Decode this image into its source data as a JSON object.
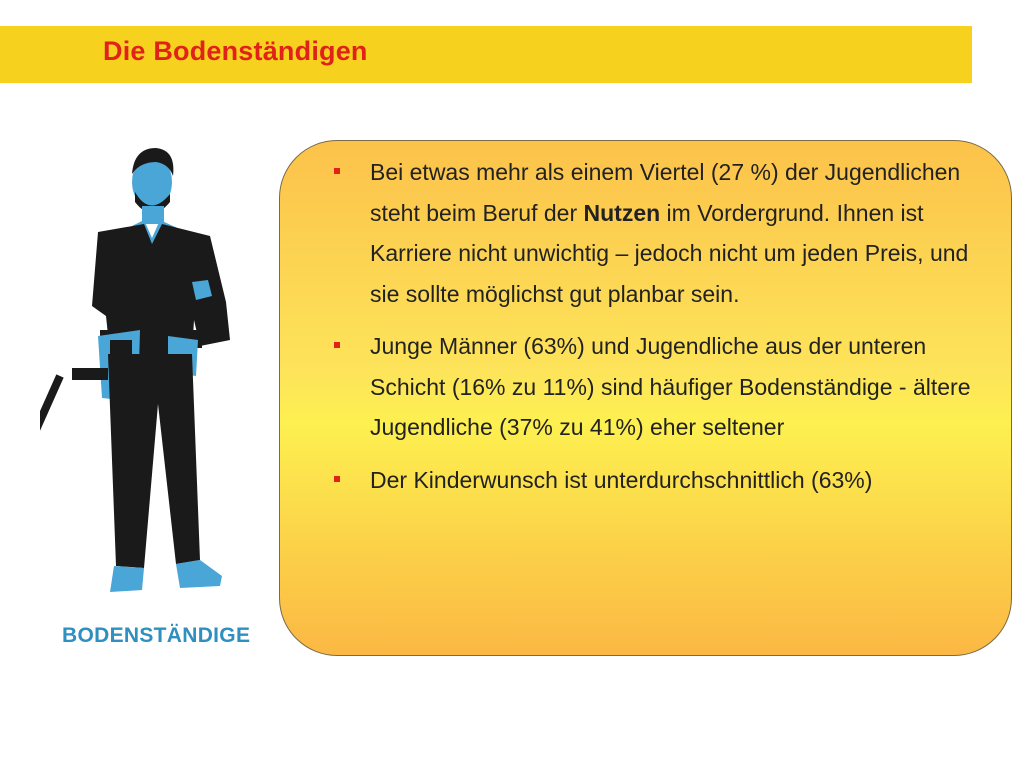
{
  "header": {
    "title": "Die Bodenständigen"
  },
  "figure": {
    "label": "BODENSTÄNDIGE",
    "icon": "craftsman-figure"
  },
  "bullets": [
    {
      "before": "Bei etwas mehr als einem Viertel (27 %) der Jugendlichen steht beim Beruf der ",
      "bold": "Nutzen",
      "after": " im Vordergrund. Ihnen ist Karriere nicht unwichtig – jedoch nicht um jeden Preis, und sie sollte möglichst gut planbar sein."
    },
    {
      "before": "Junge Männer (63%) und Jugendliche aus der unteren Schicht (16% zu 11%) sind häufiger Bodenständige - ältere Jugendliche (37% zu 41%) eher seltener",
      "bold": "",
      "after": ""
    },
    {
      "before": "Der Kinderwunsch ist unterdurchschnittlich (63%)",
      "bold": "",
      "after": ""
    }
  ],
  "colors": {
    "title_bar": "#f6d21e",
    "title_text": "#e0221a",
    "bullet_marker": "#e0221a",
    "figure_blue": "#4aa6d6",
    "figure_dark": "#1a1a1a",
    "label_blue": "#2f8fbf"
  }
}
